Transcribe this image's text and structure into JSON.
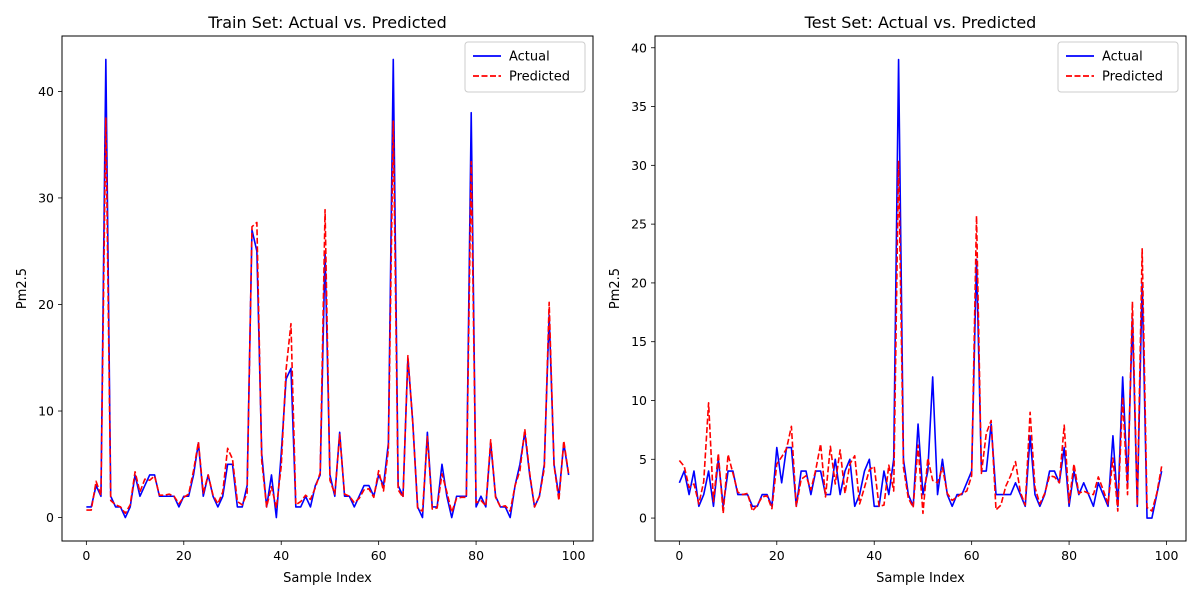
{
  "chart_data": [
    {
      "type": "line",
      "title": "Train Set: Actual vs. Predicted",
      "xlabel": "Sample Index",
      "ylabel": "Pm2.5",
      "xlim": [
        -5,
        104
      ],
      "ylim": [
        -2.2,
        45.2
      ],
      "xticks": [
        0,
        20,
        40,
        60,
        80,
        100
      ],
      "yticks": [
        0,
        10,
        20,
        30,
        40
      ],
      "legend_position": "top-right",
      "series": [
        {
          "name": "Actual",
          "color": "#0000ff",
          "style": "solid",
          "values": [
            1,
            1,
            3,
            2,
            43,
            2,
            1,
            1,
            0,
            1,
            4,
            2,
            3,
            4,
            4,
            2,
            2,
            2,
            2,
            1,
            2,
            2,
            4,
            7,
            2,
            4,
            2,
            1,
            2,
            5,
            5,
            1,
            1,
            3,
            27,
            25,
            6,
            1,
            4,
            0,
            6,
            13,
            14,
            1,
            1,
            2,
            1,
            3,
            4,
            25,
            4,
            2,
            8,
            2,
            2,
            1,
            2,
            3,
            3,
            2,
            4,
            3,
            7,
            43,
            3,
            2,
            15,
            9,
            1,
            0,
            8,
            1,
            1,
            5,
            2,
            0,
            2,
            2,
            2,
            38,
            1,
            2,
            1,
            7,
            2,
            1,
            1,
            0,
            3,
            5,
            8,
            4,
            1,
            2,
            5,
            19,
            5,
            2,
            7,
            4
          ]
        },
        {
          "name": "Predicted",
          "color": "#ff0000",
          "style": "dashed",
          "values": [
            0.7,
            0.7,
            3.4,
            2.1,
            37.5,
            1.6,
            1.2,
            1.0,
            0.4,
            1.2,
            4.3,
            2.4,
            3.6,
            3.5,
            3.9,
            2.1,
            2.1,
            2.2,
            2.0,
            1.3,
            1.9,
            2.2,
            4.4,
            7.1,
            2.3,
            4.0,
            2.1,
            1.3,
            2.4,
            6.5,
            5.5,
            1.5,
            1.2,
            2.3,
            27.3,
            27.7,
            5.3,
            1.0,
            2.9,
            0.9,
            4.8,
            13.9,
            18.2,
            1.2,
            1.5,
            2.1,
            1.7,
            2.8,
            4.2,
            28.9,
            3.5,
            2.2,
            7.8,
            2.2,
            2.0,
            1.4,
            1.8,
            2.6,
            2.7,
            1.9,
            4.4,
            2.5,
            6.4,
            37.2,
            2.6,
            1.9,
            15.2,
            8.9,
            0.9,
            0.6,
            7.6,
            0.8,
            0.9,
            4.1,
            2.4,
            0.5,
            1.8,
            1.9,
            1.9,
            33.4,
            1.4,
            1.6,
            1.1,
            7.3,
            1.9,
            1.0,
            1.1,
            0.6,
            3.0,
            4.4,
            8.3,
            4.2,
            1.0,
            2.0,
            4.6,
            20.2,
            4.9,
            1.6,
            7.2,
            4.1
          ]
        }
      ]
    },
    {
      "type": "line",
      "title": "Test Set: Actual vs. Predicted",
      "xlabel": "Sample Index",
      "ylabel": "Pm2.5",
      "xlim": [
        -5,
        104
      ],
      "ylim": [
        -1.95,
        41.0
      ],
      "xticks": [
        0,
        20,
        40,
        60,
        80,
        100
      ],
      "yticks": [
        0,
        5,
        10,
        15,
        20,
        25,
        30,
        35,
        40
      ],
      "legend_position": "top-right",
      "series": [
        {
          "name": "Actual",
          "color": "#0000ff",
          "style": "solid",
          "values": [
            3,
            4,
            2,
            4,
            1,
            2,
            4,
            1,
            5,
            1,
            4,
            4,
            2,
            2,
            2,
            1,
            1,
            2,
            2,
            1,
            6,
            3,
            6,
            6,
            1,
            4,
            4,
            2,
            4,
            4,
            2,
            2,
            5,
            2,
            4,
            5,
            1,
            2,
            4,
            5,
            1,
            1,
            4,
            2,
            5,
            39,
            5,
            2,
            1,
            8,
            2,
            4,
            12,
            2,
            5,
            2,
            1,
            2,
            2,
            3,
            4,
            22,
            4,
            4,
            8,
            2,
            2,
            2,
            2,
            3,
            2,
            1,
            7,
            2,
            1,
            2,
            4,
            4,
            3,
            6,
            1,
            4,
            2,
            3,
            2,
            1,
            3,
            2,
            1,
            7,
            1,
            12,
            3,
            17,
            1,
            20,
            0,
            0,
            2,
            4
          ]
        },
        {
          "name": "Predicted",
          "color": "#ff0000",
          "style": "dashed",
          "values": [
            4.9,
            4.4,
            2.6,
            2.9,
            1.2,
            3.1,
            9.8,
            1.4,
            5.5,
            0.4,
            5.4,
            3.8,
            2.2,
            2.0,
            2.1,
            0.6,
            1.1,
            1.8,
            1.9,
            0.8,
            4.6,
            5.2,
            5.9,
            7.8,
            1.0,
            3.3,
            3.6,
            2.4,
            4.1,
            6.3,
            1.8,
            6.1,
            2.9,
            5.8,
            2.1,
            4.6,
            5.3,
            1.2,
            2.6,
            4.1,
            4.4,
            1.0,
            1.1,
            4.5,
            2.3,
            30.4,
            4.3,
            1.7,
            0.9,
            6.2,
            0.4,
            5.1,
            3.2,
            3.0,
            4.3,
            2.1,
            1.5,
            1.8,
            2.1,
            2.3,
            3.6,
            25.7,
            3.8,
            7.2,
            8.3,
            0.7,
            1.1,
            2.7,
            3.6,
            4.8,
            2.2,
            1.1,
            9.0,
            2.6,
            1.2,
            2.1,
            3.6,
            3.5,
            3.0,
            7.9,
            1.3,
            4.6,
            2.1,
            2.3,
            2.1,
            2.0,
            3.5,
            2.4,
            1.2,
            5.1,
            0.6,
            10.3,
            2.0,
            18.4,
            1.1,
            22.9,
            0.9,
            0.6,
            2.1,
            4.4
          ]
        }
      ]
    }
  ]
}
